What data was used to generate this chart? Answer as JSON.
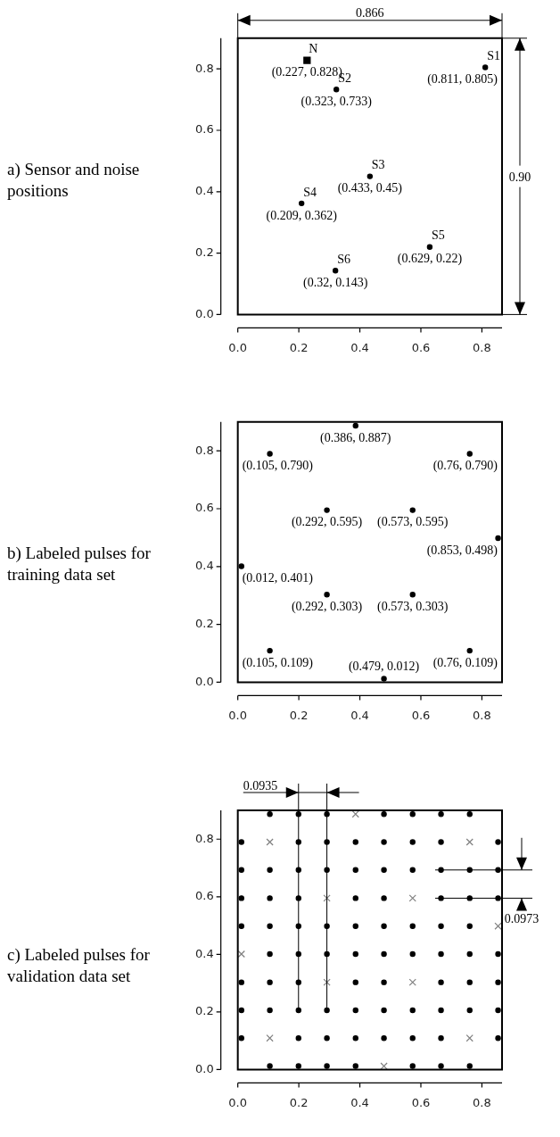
{
  "chart_data": [
    {
      "type": "scatter",
      "title": "a) Sensor and noise positions",
      "xlim": [
        0,
        0.866
      ],
      "ylim": [
        0,
        0.9
      ],
      "xticks": [
        {
          "value": 0,
          "label": "0.0"
        },
        {
          "value": 0.2,
          "label": "0.2"
        },
        {
          "value": 0.4,
          "label": "0.4"
        },
        {
          "value": 0.6,
          "label": "0.6"
        },
        {
          "value": 0.8,
          "label": "0.8"
        }
      ],
      "yticks": [
        {
          "value": 0,
          "label": "0.0"
        },
        {
          "value": 0.2,
          "label": "0.2"
        },
        {
          "value": 0.4,
          "label": "0.4"
        },
        {
          "value": 0.6,
          "label": "0.6"
        },
        {
          "value": 0.8,
          "label": "0.8"
        }
      ],
      "series": [
        {
          "name": "N",
          "color": "#000000",
          "marker": "square",
          "x": [
            0.227
          ],
          "values": [
            0.828
          ],
          "value_labels": [
            "(0.227, 0.828)"
          ]
        },
        {
          "name": "S1",
          "color": "#000000",
          "marker": "circle",
          "x": [
            0.811
          ],
          "values": [
            0.805
          ],
          "value_labels": [
            "(0.811, 0.805)"
          ]
        },
        {
          "name": "S2",
          "color": "#000000",
          "marker": "circle",
          "x": [
            0.323
          ],
          "values": [
            0.733
          ],
          "value_labels": [
            "(0.323, 0.733)"
          ]
        },
        {
          "name": "S3",
          "color": "#000000",
          "marker": "circle",
          "x": [
            0.433
          ],
          "values": [
            0.45
          ],
          "value_labels": [
            "(0.433, 0.45)"
          ]
        },
        {
          "name": "S4",
          "color": "#000000",
          "marker": "circle",
          "x": [
            0.209
          ],
          "values": [
            0.362
          ],
          "value_labels": [
            "(0.209, 0.362)"
          ]
        },
        {
          "name": "S5",
          "color": "#000000",
          "marker": "circle",
          "x": [
            0.629
          ],
          "values": [
            0.22
          ],
          "value_labels": [
            "(0.629, 0.22)"
          ]
        },
        {
          "name": "S6",
          "color": "#000000",
          "marker": "circle",
          "x": [
            0.32
          ],
          "values": [
            0.143
          ],
          "value_labels": [
            "(0.32, 0.143)"
          ]
        }
      ],
      "annotations": [
        "0.866",
        "0.90"
      ]
    },
    {
      "type": "scatter",
      "title": "b) Labeled pulses for training data set",
      "xlim": [
        0,
        0.866
      ],
      "ylim": [
        0,
        0.9
      ],
      "xticks": [
        {
          "value": 0,
          "label": "0.0"
        },
        {
          "value": 0.2,
          "label": "0.2"
        },
        {
          "value": 0.4,
          "label": "0.4"
        },
        {
          "value": 0.6,
          "label": "0.6"
        },
        {
          "value": 0.8,
          "label": "0.8"
        }
      ],
      "yticks": [
        {
          "value": 0,
          "label": "0.0"
        },
        {
          "value": 0.2,
          "label": "0.2"
        },
        {
          "value": 0.4,
          "label": "0.4"
        },
        {
          "value": 0.6,
          "label": "0.6"
        },
        {
          "value": 0.8,
          "label": "0.8"
        }
      ],
      "series": [
        {
          "color": "#000000",
          "marker": "circle",
          "x": [
            0.479,
            0.105,
            0.76,
            0.292,
            0.573,
            0.012,
            0.853,
            0.292,
            0.573,
            0.105,
            0.76,
            0.386
          ],
          "values": [
            0.012,
            0.109,
            0.109,
            0.303,
            0.303,
            0.401,
            0.498,
            0.595,
            0.595,
            0.79,
            0.79,
            0.887
          ],
          "value_labels": [
            "(0.479, 0.012)",
            "(0.105, 0.109)",
            "(0.76, 0.109)",
            "(0.292, 0.303)",
            "(0.573, 0.303)",
            "(0.012, 0.401)",
            "(0.853, 0.498)",
            "(0.292, 0.595)",
            "(0.573, 0.595)",
            "(0.105, 0.790)",
            "(0.76, 0.790)",
            "(0.386, 0.887)"
          ]
        }
      ]
    },
    {
      "type": "scatter",
      "title": "c) Labeled pulses for validation data set",
      "xlim": [
        0,
        0.866
      ],
      "ylim": [
        0,
        0.9
      ],
      "xticks": [
        {
          "value": 0,
          "label": "0.0"
        },
        {
          "value": 0.2,
          "label": "0.2"
        },
        {
          "value": 0.4,
          "label": "0.4"
        },
        {
          "value": 0.6,
          "label": "0.6"
        },
        {
          "value": 0.8,
          "label": "0.8"
        }
      ],
      "yticks": [
        {
          "value": 0,
          "label": "0.0"
        },
        {
          "value": 0.2,
          "label": "0.2"
        },
        {
          "value": 0.4,
          "label": "0.4"
        },
        {
          "value": 0.6,
          "label": "0.6"
        },
        {
          "value": 0.8,
          "label": "0.8"
        }
      ],
      "series": [
        {
          "color": "#000000",
          "marker": "circle",
          "x": [
            0.105,
            0.199,
            0.292,
            0.386,
            0.573,
            0.666,
            0.76,
            0.012,
            0.199,
            0.292,
            0.386,
            0.479,
            0.573,
            0.666,
            0.853,
            0.012,
            0.105,
            0.199,
            0.292,
            0.386,
            0.479,
            0.573,
            0.666,
            0.76,
            0.853,
            0.012,
            0.105,
            0.199,
            0.386,
            0.479,
            0.666,
            0.76,
            0.853,
            0.105,
            0.199,
            0.292,
            0.386,
            0.479,
            0.573,
            0.666,
            0.76,
            0.853,
            0.012,
            0.105,
            0.199,
            0.292,
            0.386,
            0.479,
            0.573,
            0.666,
            0.76,
            0.012,
            0.105,
            0.199,
            0.386,
            0.479,
            0.666,
            0.76,
            0.853,
            0.012,
            0.105,
            0.199,
            0.292,
            0.386,
            0.479,
            0.573,
            0.666,
            0.76,
            0.853,
            0.012,
            0.199,
            0.292,
            0.386,
            0.479,
            0.573,
            0.666,
            0.853,
            0.105,
            0.199,
            0.292,
            0.479,
            0.573,
            0.666,
            0.76
          ],
          "values": [
            0.012,
            0.012,
            0.012,
            0.012,
            0.012,
            0.012,
            0.012,
            0.109,
            0.109,
            0.109,
            0.109,
            0.109,
            0.109,
            0.109,
            0.109,
            0.206,
            0.206,
            0.206,
            0.206,
            0.206,
            0.206,
            0.206,
            0.206,
            0.206,
            0.206,
            0.303,
            0.303,
            0.303,
            0.303,
            0.303,
            0.303,
            0.303,
            0.303,
            0.401,
            0.401,
            0.401,
            0.401,
            0.401,
            0.401,
            0.401,
            0.401,
            0.401,
            0.498,
            0.498,
            0.498,
            0.498,
            0.498,
            0.498,
            0.498,
            0.498,
            0.498,
            0.595,
            0.595,
            0.595,
            0.595,
            0.595,
            0.595,
            0.595,
            0.595,
            0.693,
            0.693,
            0.693,
            0.693,
            0.693,
            0.693,
            0.693,
            0.693,
            0.693,
            0.693,
            0.79,
            0.79,
            0.79,
            0.79,
            0.79,
            0.79,
            0.79,
            0.79,
            0.887,
            0.887,
            0.887,
            0.887,
            0.887,
            0.887,
            0.887
          ]
        },
        {
          "color": "#808080",
          "marker": "cross",
          "x": [
            0.479,
            0.105,
            0.76,
            0.292,
            0.573,
            0.012,
            0.853,
            0.292,
            0.573,
            0.105,
            0.76,
            0.386
          ],
          "values": [
            0.012,
            0.109,
            0.109,
            0.303,
            0.303,
            0.401,
            0.498,
            0.595,
            0.595,
            0.79,
            0.79,
            0.887
          ]
        }
      ],
      "annotations": [
        "0.0935",
        "0.0973"
      ]
    }
  ]
}
